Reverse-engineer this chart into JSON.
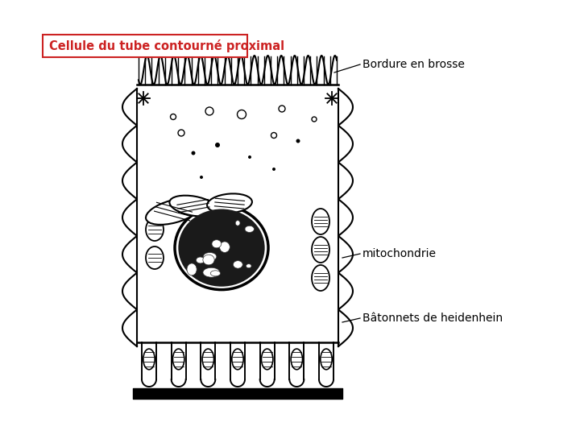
{
  "title": "Cellule du tube contourné proximal",
  "title_color": "#cc2222",
  "title_box_color": "#cc2222",
  "title_fontsize": 10.5,
  "label_bordure": "Bordure en brosse",
  "label_mito": "mitochondrie",
  "label_batons": "Bâtonnets de heidenhein",
  "label_fontsize": 10,
  "bg_color": "#ffffff",
  "cell_color": "#000000",
  "fig_width": 7.2,
  "fig_height": 5.4,
  "dpi": 100
}
